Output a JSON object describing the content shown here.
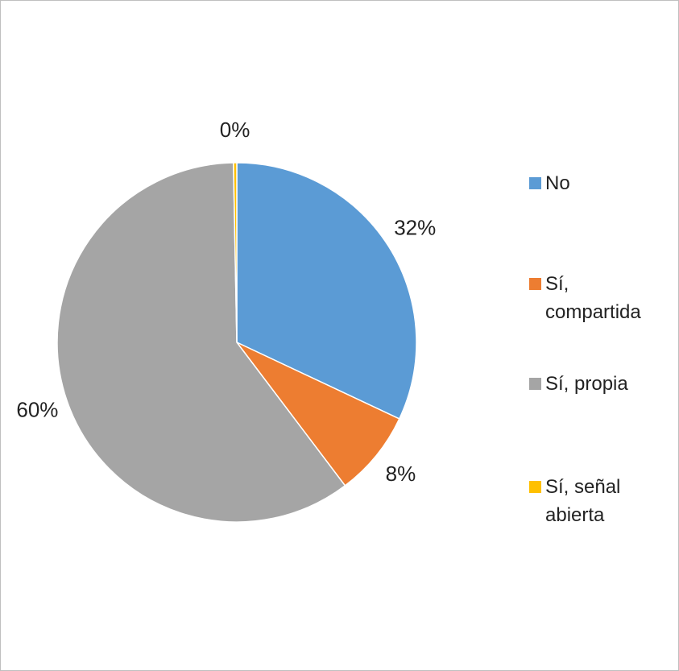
{
  "chart_data": {
    "type": "pie",
    "categories": [
      "No",
      "Sí, compartida",
      "Sí, propia",
      "Sí, señal abierta"
    ],
    "values": [
      32,
      7.7,
      60,
      0.3
    ],
    "value_labels": [
      "32%",
      "8%",
      "60%",
      "0%"
    ],
    "colors": [
      "#5b9bd5",
      "#ed7d31",
      "#a5a5a5",
      "#ffc000"
    ],
    "legend": "right"
  }
}
